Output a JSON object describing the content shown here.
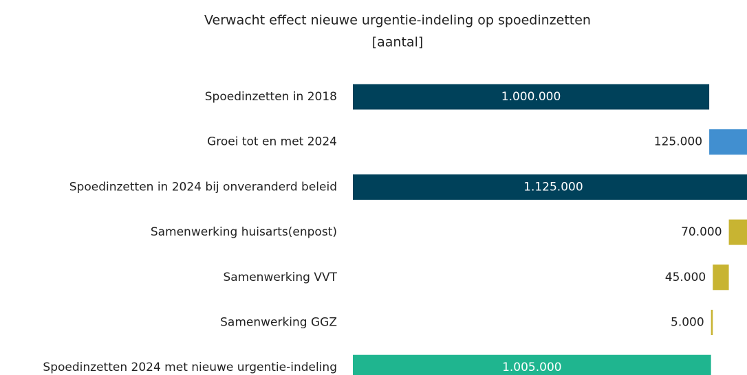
{
  "chart_data": {
    "type": "waterfall",
    "orientation": "horizontal",
    "title": "Verwacht effect nieuwe urgentie-indeling op spoedinzetten",
    "subtitle": "[aantal]",
    "categories": [
      "Spoedinzetten in 2018",
      "Groei tot en met 2024",
      "Spoedinzetten in 2024 bij onveranderd beleid",
      "Samenwerking huisarts(enpost)",
      "Samenwerking VVT",
      "Samenwerking GGZ",
      "Spoedinzetten 2024 met nieuwe urgentie-indeling"
    ],
    "values": [
      1000000,
      125000,
      1125000,
      70000,
      45000,
      5000,
      1005000
    ],
    "value_labels": [
      "1.000.000",
      "125.000",
      "1.125.000",
      "70.000",
      "45.000",
      "5.000",
      "1.005.000"
    ],
    "measures": [
      "total",
      "increase",
      "total",
      "decrease",
      "decrease",
      "decrease",
      "total"
    ],
    "colors": [
      "#00415a",
      "#418fd0",
      "#00415a",
      "#c8b432",
      "#c8b432",
      "#c8b432",
      "#1fb58f"
    ],
    "xlim": [
      0,
      1106000
    ]
  }
}
